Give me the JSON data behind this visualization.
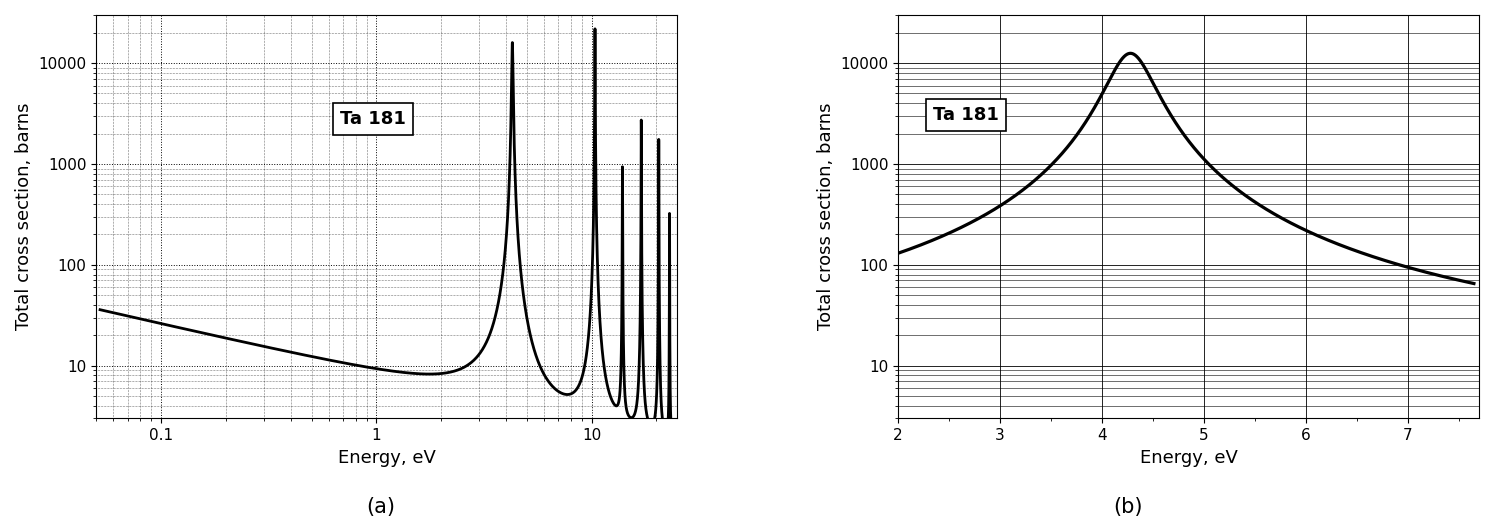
{
  "title_a": "Ta 181",
  "title_b": "Ta 181",
  "xlabel": "Energy, eV",
  "ylabel": "Total cross section, barns",
  "label_a": "(a)",
  "label_b": "(b)",
  "plot_a": {
    "xlim": [
      0.05,
      25
    ],
    "ylim": [
      3,
      30000
    ],
    "resonances": [
      {
        "E0": 4.28,
        "peak": 16000,
        "gamma": 0.058
      },
      {
        "E0": 10.36,
        "peak": 22000,
        "gamma": 0.038
      },
      {
        "E0": 13.9,
        "peak": 950,
        "gamma": 0.036
      },
      {
        "E0": 17.0,
        "peak": 2800,
        "gamma": 0.04
      },
      {
        "E0": 20.5,
        "peak": 1900,
        "gamma": 0.038
      },
      {
        "E0": 23.0,
        "peak": 350,
        "gamma": 0.035
      }
    ],
    "background_A": 8.0,
    "background_power": -0.5
  },
  "plot_b": {
    "xlim": [
      2.0,
      7.7
    ],
    "ylim": [
      3,
      30000
    ],
    "E0": 4.28,
    "peak": 12500,
    "gamma_total": 0.45,
    "sigma_pot": 9.8
  },
  "line_color": "#000000",
  "line_width": 2.0,
  "font_size_label": 13,
  "font_size_tick": 11,
  "font_size_annotation": 13,
  "font_size_caption": 15
}
